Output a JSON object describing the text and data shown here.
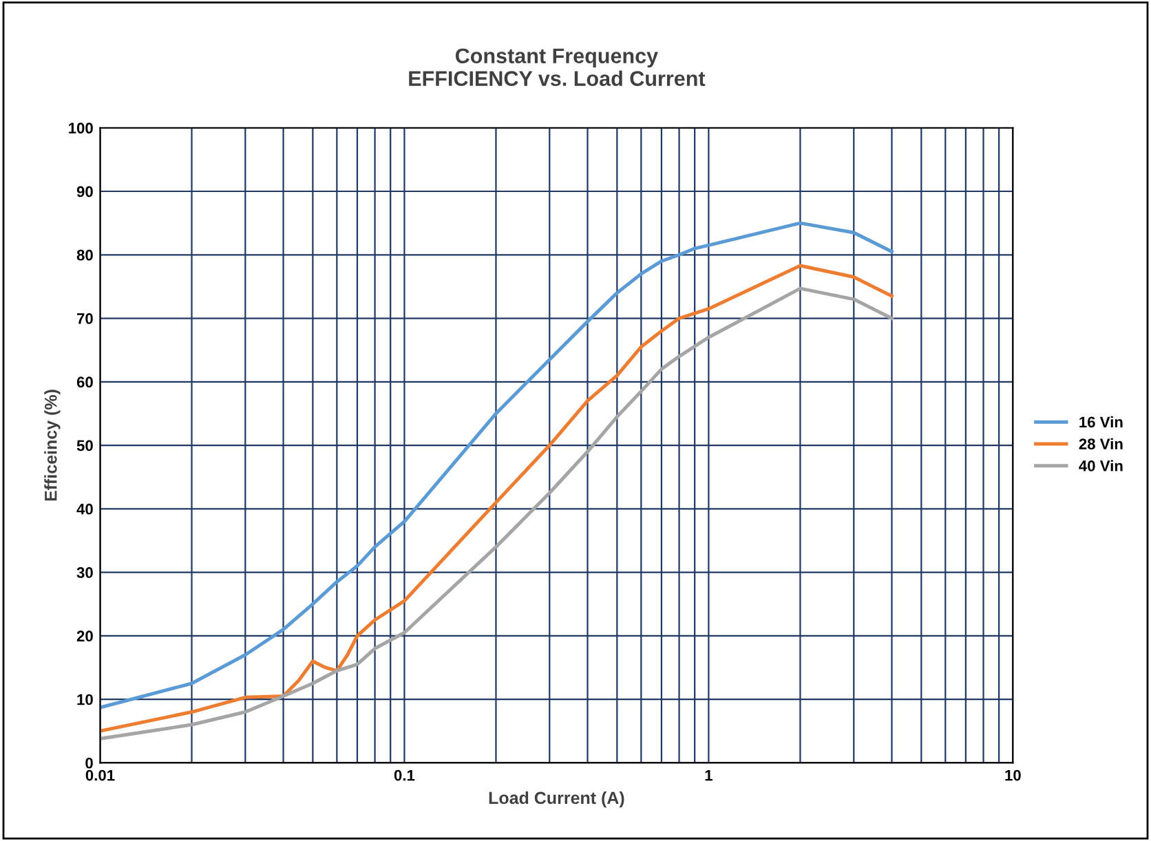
{
  "chart_data": {
    "type": "line",
    "title": "Constant Frequency\nEFFICIENCY vs. Load Current",
    "xlabel": "Load Current (A)",
    "ylabel": "Efficeincy (%)",
    "log": "x",
    "xlim": [
      0.01,
      10
    ],
    "ylim": [
      0,
      100
    ],
    "xticks": [
      0.01,
      {
        "value": 0.02,
        "label": null
      },
      {
        "value": 0.03,
        "label": null
      },
      {
        "value": 0.04,
        "label": null
      },
      {
        "value": 0.05,
        "label": null
      },
      {
        "value": 0.06,
        "label": null
      },
      {
        "value": 0.07,
        "label": null
      },
      {
        "value": 0.08,
        "label": null
      },
      {
        "value": 0.09,
        "label": null
      },
      0.1,
      {
        "value": 0.2,
        "label": null
      },
      {
        "value": 0.3,
        "label": null
      },
      {
        "value": 0.4,
        "label": null
      },
      {
        "value": 0.5,
        "label": null
      },
      {
        "value": 0.6,
        "label": null
      },
      {
        "value": 0.7,
        "label": null
      },
      {
        "value": 0.8,
        "label": null
      },
      {
        "value": 0.9,
        "label": null
      },
      1,
      {
        "value": 2,
        "label": null
      },
      {
        "value": 3,
        "label": null
      },
      {
        "value": 4,
        "label": null
      },
      {
        "value": 5,
        "label": null
      },
      {
        "value": 6,
        "label": null
      },
      {
        "value": 7,
        "label": null
      },
      {
        "value": 8,
        "label": null
      },
      {
        "value": 9,
        "label": null
      },
      10
    ],
    "yticks": [
      0,
      10,
      20,
      30,
      40,
      50,
      60,
      70,
      80,
      90,
      100
    ],
    "grid": true,
    "legend": "right",
    "marker": "none",
    "line_style": "solid",
    "series": [
      {
        "name": "16 Vin",
        "color": "#5b9bd5",
        "x": [
          0.01,
          0.02,
          0.03,
          0.04,
          0.05,
          0.06,
          0.07,
          0.08,
          0.1,
          0.2,
          0.3,
          0.4,
          0.5,
          0.6,
          0.7,
          0.8,
          0.9,
          1,
          2,
          3,
          4
        ],
        "values": [
          8.7,
          12.5,
          17,
          21,
          25,
          28.5,
          31,
          34,
          38,
          55,
          63.5,
          69.5,
          74,
          77,
          79,
          80,
          81,
          81.5,
          85,
          83.5,
          80.5
        ]
      },
      {
        "name": "28 Vin",
        "color": "#ed7d31",
        "x": [
          0.01,
          0.02,
          0.03,
          0.04,
          0.045,
          0.05,
          0.055,
          0.06,
          0.065,
          0.07,
          0.08,
          0.1,
          0.2,
          0.3,
          0.4,
          0.5,
          0.6,
          0.7,
          0.8,
          1,
          2,
          3,
          4
        ],
        "values": [
          5,
          8,
          10.3,
          10.5,
          13,
          16,
          15,
          14.5,
          17,
          20,
          22.5,
          25.5,
          41,
          50,
          57,
          61,
          65.5,
          68,
          70,
          71.5,
          78.3,
          76.5,
          73.5
        ]
      },
      {
        "name": "40 Vin",
        "color": "#a5a5a5",
        "x": [
          0.01,
          0.02,
          0.03,
          0.04,
          0.05,
          0.06,
          0.07,
          0.08,
          0.1,
          0.2,
          0.3,
          0.4,
          0.5,
          0.6,
          0.7,
          0.8,
          1,
          2,
          3,
          4
        ],
        "values": [
          3.8,
          6,
          8,
          10.5,
          12.5,
          14.5,
          15.5,
          18,
          20.5,
          34,
          42.5,
          49,
          54.5,
          58.5,
          62,
          64,
          67,
          74.7,
          73,
          70
        ]
      }
    ]
  }
}
